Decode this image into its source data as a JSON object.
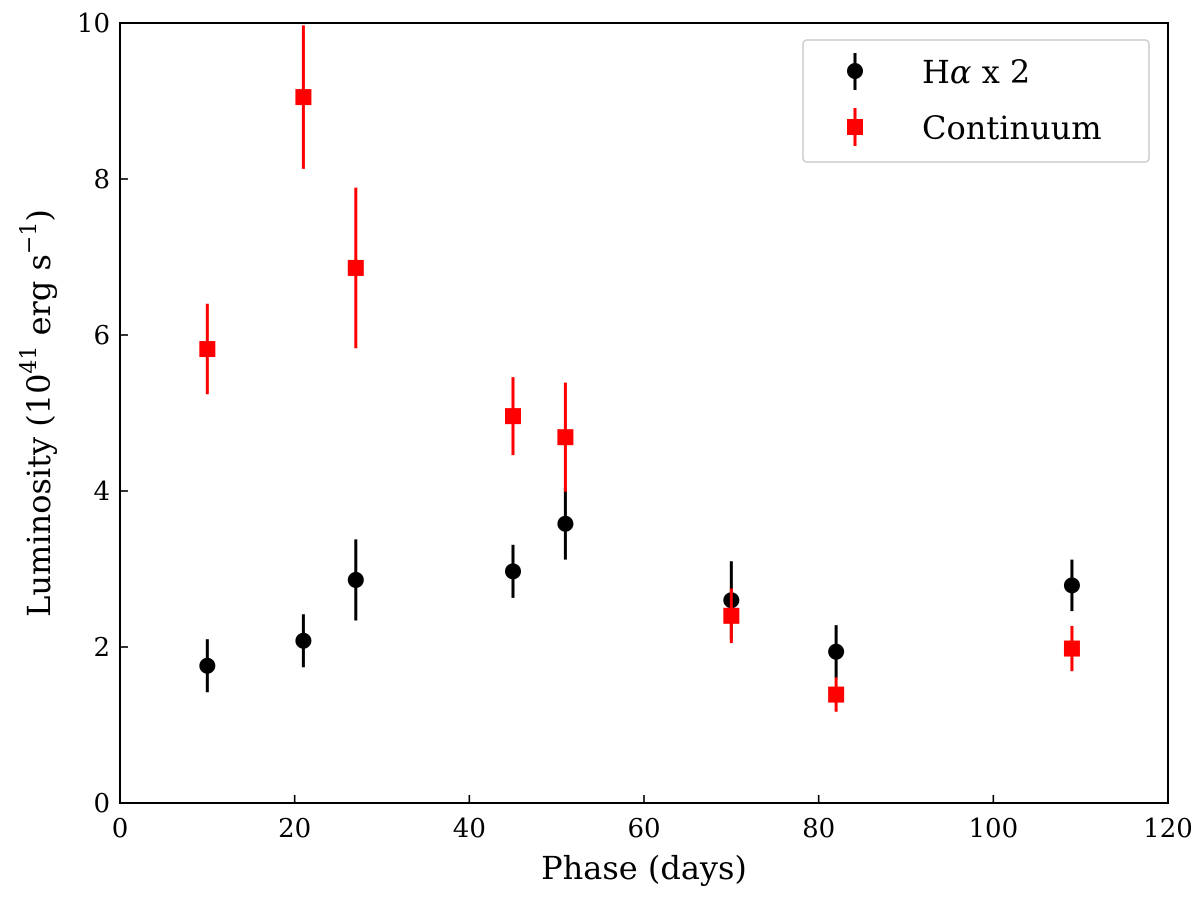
{
  "chart_data": {
    "type": "scatter",
    "title": "",
    "xlabel": "Phase (days)",
    "ylabel_parts": {
      "pre": "Luminosity (10",
      "exp": "41",
      "mid": " erg s",
      "exp2": "−1",
      "post": ")"
    },
    "xlim": [
      0,
      120
    ],
    "ylim": [
      0,
      10
    ],
    "xticks": [
      "0",
      "20",
      "40",
      "60",
      "80",
      "100",
      "120"
    ],
    "yticks": [
      "0",
      "2",
      "4",
      "6",
      "8",
      "10"
    ],
    "grid": false,
    "legend_position": "top-right",
    "series": [
      {
        "name": "Hα x 2",
        "legend_parts": {
          "pre": "H",
          "greek": "α",
          "post": " x 2"
        },
        "marker": "circle",
        "color": "#000000",
        "x": [
          10,
          21,
          27,
          45,
          51,
          70,
          82,
          109
        ],
        "y": [
          1.76,
          2.08,
          2.86,
          2.97,
          3.58,
          2.6,
          1.94,
          2.79
        ],
        "err": [
          0.34,
          0.34,
          0.52,
          0.34,
          0.46,
          0.5,
          0.34,
          0.33
        ]
      },
      {
        "name": "Continuum",
        "marker": "square",
        "color": "#ff0000",
        "x": [
          10,
          21,
          27,
          45,
          51,
          70,
          82,
          109
        ],
        "y": [
          5.82,
          9.05,
          6.86,
          4.96,
          4.69,
          2.4,
          1.39,
          1.98
        ],
        "err": [
          0.58,
          0.92,
          1.03,
          0.5,
          0.7,
          0.35,
          0.22,
          0.29
        ]
      }
    ]
  }
}
